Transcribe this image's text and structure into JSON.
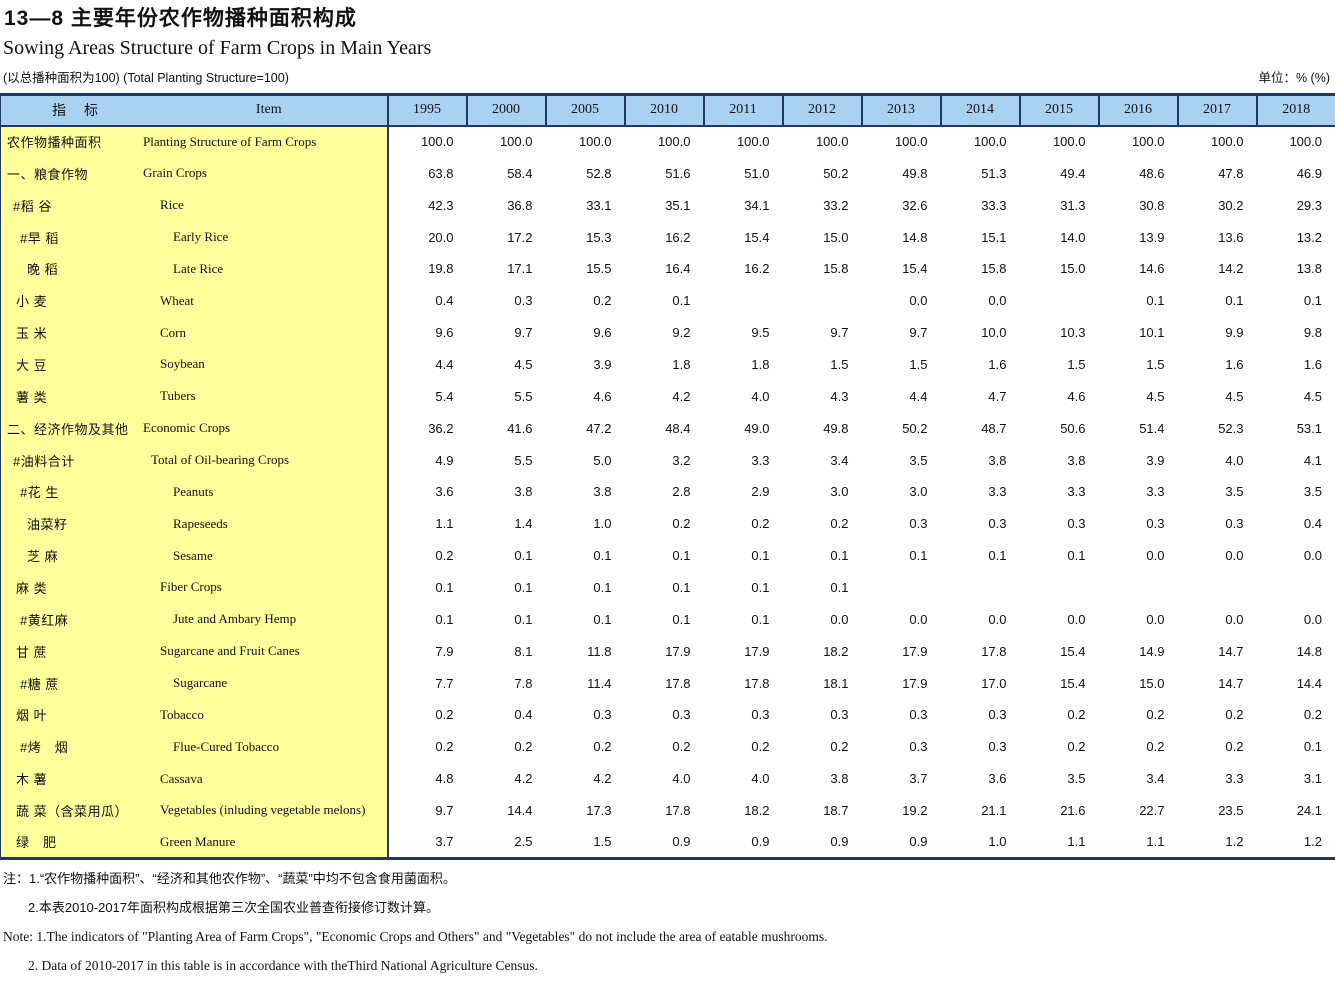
{
  "page": {
    "title_cn": "13—8  主要年份农作物播种面积构成",
    "title_en": "Sowing Areas Structure of Farm Crops in Main Years",
    "subtitle": "(以总播种面积为100) (Total Planting Structure=100)",
    "unit": "单位：% (%)"
  },
  "colors": {
    "header_blue": "#a9d2f2",
    "label_yellow": "#ffff9c",
    "border_dark": "#1f3864"
  },
  "table": {
    "indicator_header": "指　标",
    "item_header": "Item",
    "years": [
      "1995",
      "2000",
      "2005",
      "2010",
      "2011",
      "2012",
      "2013",
      "2014",
      "2015",
      "2016",
      "2017",
      "2018"
    ],
    "rows": [
      {
        "cn": "农作物播种面积",
        "en": "Planting Structure of Farm Crops",
        "cn_indent": 6,
        "en_indent": 0,
        "values": [
          "100.0",
          "100.0",
          "100.0",
          "100.0",
          "100.0",
          "100.0",
          "100.0",
          "100.0",
          "100.0",
          "100.0",
          "100.0",
          "100.0"
        ]
      },
      {
        "cn": "一、粮食作物",
        "en": "Grain Crops",
        "cn_indent": 6,
        "en_indent": 0,
        "values": [
          "63.8",
          "58.4",
          "52.8",
          "51.6",
          "51.0",
          "50.2",
          "49.8",
          "51.3",
          "49.4",
          "48.6",
          "47.8",
          "46.9"
        ]
      },
      {
        "cn": "#稻 谷",
        "en": "Rice",
        "cn_indent": 12,
        "en_indent": 17,
        "values": [
          "42.3",
          "36.8",
          "33.1",
          "35.1",
          "34.1",
          "33.2",
          "32.6",
          "33.3",
          "31.3",
          "30.8",
          "30.2",
          "29.3"
        ]
      },
      {
        "cn": "#早 稻",
        "en": "Early Rice",
        "cn_indent": 19,
        "en_indent": 30,
        "values": [
          "20.0",
          "17.2",
          "15.3",
          "16.2",
          "15.4",
          "15.0",
          "14.8",
          "15.1",
          "14.0",
          "13.9",
          "13.6",
          "13.2"
        ]
      },
      {
        "cn": "晚 稻",
        "en": "Late Rice",
        "cn_indent": 26,
        "en_indent": 30,
        "values": [
          "19.8",
          "17.1",
          "15.5",
          "16.4",
          "16.2",
          "15.8",
          "15.4",
          "15.8",
          "15.0",
          "14.6",
          "14.2",
          "13.8"
        ]
      },
      {
        "cn": "小 麦",
        "en": "Wheat",
        "cn_indent": 15,
        "en_indent": 17,
        "values": [
          "0.4",
          "0.3",
          "0.2",
          "0.1",
          "",
          "",
          "0.0",
          "0.0",
          "",
          "0.1",
          "0.1",
          "0.1"
        ]
      },
      {
        "cn": "玉 米",
        "en": "Corn",
        "cn_indent": 15,
        "en_indent": 17,
        "values": [
          "9.6",
          "9.7",
          "9.6",
          "9.2",
          "9.5",
          "9.7",
          "9.7",
          "10.0",
          "10.3",
          "10.1",
          "9.9",
          "9.8"
        ]
      },
      {
        "cn": "大 豆",
        "en": "Soybean",
        "cn_indent": 15,
        "en_indent": 17,
        "values": [
          "4.4",
          "4.5",
          "3.9",
          "1.8",
          "1.8",
          "1.5",
          "1.5",
          "1.6",
          "1.5",
          "1.5",
          "1.6",
          "1.6"
        ]
      },
      {
        "cn": "薯 类",
        "en": "Tubers",
        "cn_indent": 15,
        "en_indent": 17,
        "values": [
          "5.4",
          "5.5",
          "4.6",
          "4.2",
          "4.0",
          "4.3",
          "4.4",
          "4.7",
          "4.6",
          "4.5",
          "4.5",
          "4.5"
        ]
      },
      {
        "cn": "二、经济作物及其他",
        "en": "Economic Crops",
        "cn_indent": 6,
        "en_indent": 0,
        "values": [
          "36.2",
          "41.6",
          "47.2",
          "48.4",
          "49.0",
          "49.8",
          "50.2",
          "48.7",
          "50.6",
          "51.4",
          "52.3",
          "53.1"
        ]
      },
      {
        "cn": "#油料合计",
        "en": "Total of Oil-bearing Crops",
        "cn_indent": 12,
        "en_indent": 8,
        "values": [
          "4.9",
          "5.5",
          "5.0",
          "3.2",
          "3.3",
          "3.4",
          "3.5",
          "3.8",
          "3.8",
          "3.9",
          "4.0",
          "4.1"
        ]
      },
      {
        "cn": "#花 生",
        "en": "Peanuts",
        "cn_indent": 19,
        "en_indent": 30,
        "values": [
          "3.6",
          "3.8",
          "3.8",
          "2.8",
          "2.9",
          "3.0",
          "3.0",
          "3.3",
          "3.3",
          "3.3",
          "3.5",
          "3.5"
        ]
      },
      {
        "cn": "油菜籽",
        "en": "Rapeseeds",
        "cn_indent": 26,
        "en_indent": 30,
        "values": [
          "1.1",
          "1.4",
          "1.0",
          "0.2",
          "0.2",
          "0.2",
          "0.3",
          "0.3",
          "0.3",
          "0.3",
          "0.3",
          "0.4"
        ]
      },
      {
        "cn": "芝 麻",
        "en": "Sesame",
        "cn_indent": 26,
        "en_indent": 30,
        "values": [
          "0.2",
          "0.1",
          "0.1",
          "0.1",
          "0.1",
          "0.1",
          "0.1",
          "0.1",
          "0.1",
          "0.0",
          "0.0",
          "0.0"
        ]
      },
      {
        "cn": "麻 类",
        "en": "Fiber Crops",
        "cn_indent": 15,
        "en_indent": 17,
        "values": [
          "0.1",
          "0.1",
          "0.1",
          "0.1",
          "0.1",
          "0.1",
          "",
          "",
          "",
          "",
          "",
          ""
        ]
      },
      {
        "cn": "#黄红麻",
        "en": "Jute and Ambary Hemp",
        "cn_indent": 19,
        "en_indent": 30,
        "values": [
          "0.1",
          "0.1",
          "0.1",
          "0.1",
          "0.1",
          "0.0",
          "0.0",
          "0.0",
          "0.0",
          "0.0",
          "0.0",
          "0.0"
        ]
      },
      {
        "cn": "甘 蔗",
        "en": "Sugarcane and Fruit Canes",
        "cn_indent": 15,
        "en_indent": 17,
        "values": [
          "7.9",
          "8.1",
          "11.8",
          "17.9",
          "17.9",
          "18.2",
          "17.9",
          "17.8",
          "15.4",
          "14.9",
          "14.7",
          "14.8"
        ]
      },
      {
        "cn": "#糖 蔗",
        "en": "Sugarcane",
        "cn_indent": 19,
        "en_indent": 30,
        "values": [
          "7.7",
          "7.8",
          "11.4",
          "17.8",
          "17.8",
          "18.1",
          "17.9",
          "17.0",
          "15.4",
          "15.0",
          "14.7",
          "14.4"
        ]
      },
      {
        "cn": "烟 叶",
        "en": "Tobacco",
        "cn_indent": 15,
        "en_indent": 17,
        "values": [
          "0.2",
          "0.4",
          "0.3",
          "0.3",
          "0.3",
          "0.3",
          "0.3",
          "0.3",
          "0.2",
          "0.2",
          "0.2",
          "0.2"
        ]
      },
      {
        "cn": "#烤　烟",
        "en": "Flue-Cured Tobacco",
        "cn_indent": 19,
        "en_indent": 30,
        "values": [
          "0.2",
          "0.2",
          "0.2",
          "0.2",
          "0.2",
          "0.2",
          "0.3",
          "0.3",
          "0.2",
          "0.2",
          "0.2",
          "0.1"
        ]
      },
      {
        "cn": "木 薯",
        "en": "Cassava",
        "cn_indent": 15,
        "en_indent": 17,
        "values": [
          "4.8",
          "4.2",
          "4.2",
          "4.0",
          "4.0",
          "3.8",
          "3.7",
          "3.6",
          "3.5",
          "3.4",
          "3.3",
          "3.1"
        ]
      },
      {
        "cn": "蔬 菜（含菜用瓜）",
        "en": "Vegetables (inluding vegetable melons)",
        "cn_indent": 15,
        "en_indent": 17,
        "values": [
          "9.7",
          "14.4",
          "17.3",
          "17.8",
          "18.2",
          "18.7",
          "19.2",
          "21.1",
          "21.6",
          "22.7",
          "23.5",
          "24.1"
        ]
      },
      {
        "cn": "绿　肥",
        "en": "Green Manure",
        "cn_indent": 15,
        "en_indent": 17,
        "values": [
          "3.7",
          "2.5",
          "1.5",
          "0.9",
          "0.9",
          "0.9",
          "0.9",
          "1.0",
          "1.1",
          "1.1",
          "1.2",
          "1.2"
        ]
      }
    ]
  },
  "notes": {
    "cn1": "注：1.“农作物播种面积”、“经济和其他农作物”、“蔬菜”中均不包含食用菌面积。",
    "cn2": "2.本表2010-2017年面积构成根据第三次全国农业普查衔接修订数计算。",
    "en1": "Note: 1.The indicators of \"Planting Area of Farm Crops\", \"Economic Crops and Others\" and \"Vegetables\" do not include the area of eatable mushrooms.",
    "en2": "2. Data of  2010-2017  in this table is in accordance with theThird National Agriculture Census."
  }
}
